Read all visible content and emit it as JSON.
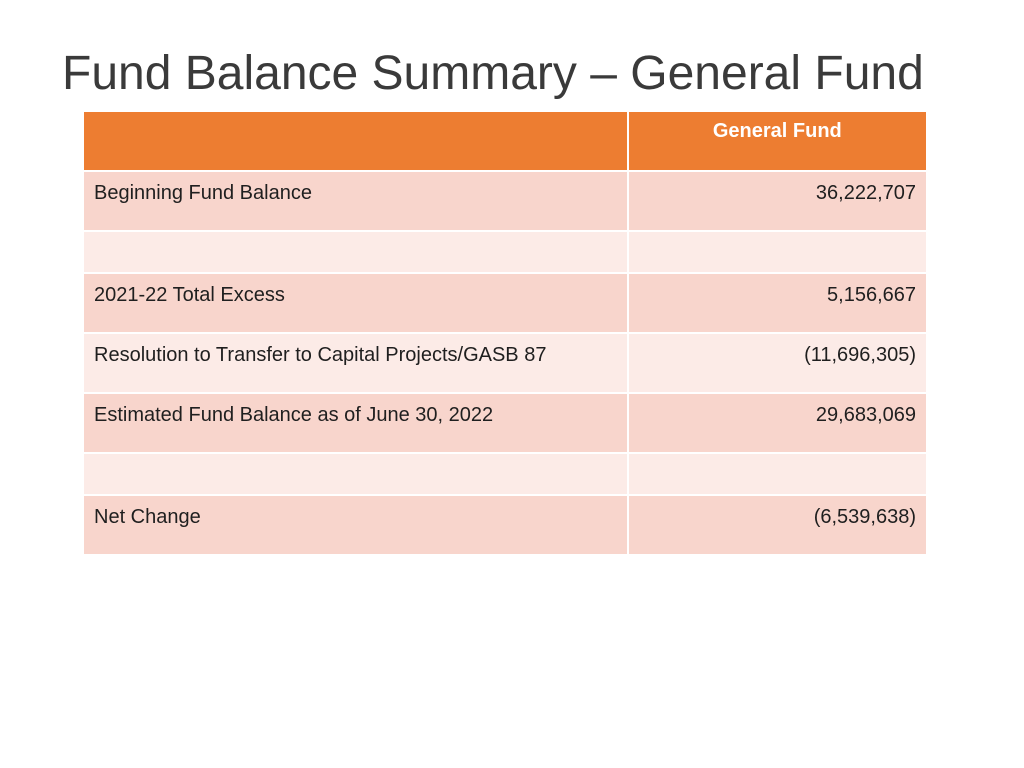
{
  "slide": {
    "title": "Fund Balance Summary – General Fund"
  },
  "table": {
    "header_label": "",
    "header_value": "General Fund",
    "rows": [
      {
        "label": "Beginning Fund Balance",
        "value": "36,222,707"
      },
      {
        "label": "",
        "value": ""
      },
      {
        "label": "2021-22 Total Excess",
        "value": "5,156,667"
      },
      {
        "label": "Resolution to Transfer to Capital Projects/GASB 87",
        "value": "(11,696,305)"
      },
      {
        "label": "Estimated Fund Balance as of June 30, 2022",
        "value": "29,683,069"
      },
      {
        "label": "",
        "value": ""
      },
      {
        "label": "Net Change",
        "value": "(6,539,638)"
      }
    ]
  },
  "colors": {
    "header_bg": "#ed7d31",
    "row_dark": "#f8d5cc",
    "row_light": "#fcebe7",
    "title_text": "#3a3a3a"
  }
}
